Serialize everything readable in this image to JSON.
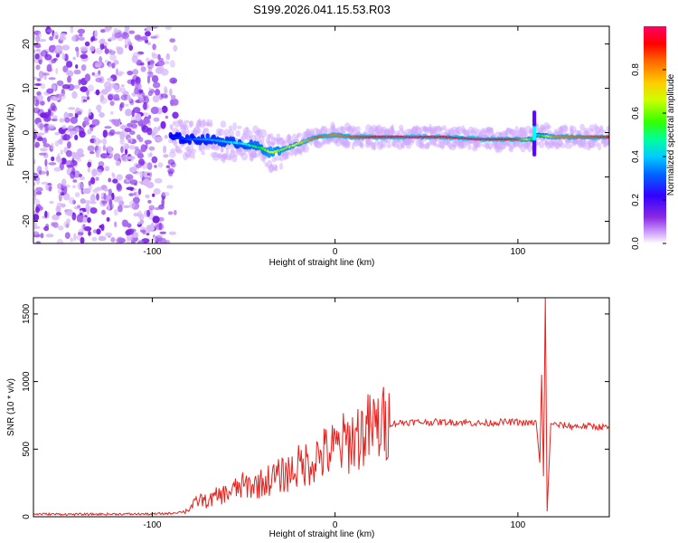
{
  "title": "S199.2026.041.15.53.R03",
  "chart_data": [
    {
      "type": "heatmap",
      "name": "spectrogram",
      "xlabel": "Height of straight line (km)",
      "ylabel": "Frequency (Hz)",
      "xlim": [
        -165,
        150
      ],
      "ylim": [
        -25,
        24
      ],
      "x_ticks": [
        -100,
        0,
        100
      ],
      "x_tick_labels": [
        "-100",
        "0",
        "100"
      ],
      "y_ticks": [
        -20,
        -10,
        0,
        10,
        20
      ],
      "y_tick_labels": [
        "-20",
        "-10",
        "0",
        "10",
        "20"
      ],
      "colorbar": {
        "label": "Normalized spectral amplitude",
        "range": [
          0.0,
          1.0
        ],
        "ticks": [
          0.0,
          0.2,
          0.4,
          0.6,
          0.8
        ],
        "tick_labels": [
          "0.0",
          "0.2",
          "0.4",
          "0.6",
          "0.8"
        ],
        "colormap": [
          "#ffffff",
          "#c8a0ff",
          "#6a00ff",
          "#0000ff",
          "#00a0ff",
          "#00ffff",
          "#00ff00",
          "#ffff00",
          "#ff8000",
          "#ff0000",
          "#ff0080"
        ]
      },
      "noise_region_x": [
        -165,
        -85
      ],
      "signal_ridge": {
        "x": [
          -90,
          -80,
          -70,
          -60,
          -50,
          -40,
          -35,
          -30,
          -20,
          -10,
          0,
          10,
          20,
          40,
          60,
          80,
          90,
          100,
          108,
          110,
          120,
          140,
          150
        ],
        "freq_hz": [
          -1.0,
          -1.5,
          -1.5,
          -2.0,
          -2.5,
          -3.5,
          -4.5,
          -4.0,
          -2.5,
          -1.0,
          -0.5,
          -1.0,
          -1.0,
          -1.0,
          -1.0,
          -1.5,
          -1.5,
          -1.5,
          -1.5,
          -0.5,
          -1.0,
          -1.0,
          -1.0
        ],
        "amplitude": [
          0.3,
          0.35,
          0.4,
          0.45,
          0.5,
          0.6,
          0.7,
          0.65,
          0.7,
          0.85,
          0.8,
          0.85,
          0.9,
          0.95,
          0.92,
          0.95,
          0.9,
          0.88,
          0.6,
          0.5,
          0.8,
          0.85,
          0.9
        ]
      },
      "spike": {
        "x": 109,
        "freq_range_hz": [
          -5,
          5
        ]
      }
    },
    {
      "type": "line",
      "name": "snr",
      "xlabel": "Height of straight line (km)",
      "ylabel": "SNR (10 * v/v)",
      "xlim": [
        -165,
        150
      ],
      "ylim": [
        0,
        1620
      ],
      "x_ticks": [
        -100,
        0,
        100
      ],
      "x_tick_labels": [
        "-100",
        "0",
        "100"
      ],
      "y_ticks": [
        0,
        500,
        1000,
        1500
      ],
      "y_tick_labels": [
        "0",
        "500",
        "1000",
        "1500"
      ],
      "series": [
        {
          "name": "SNR",
          "color": "#e8201c",
          "x": [
            -165,
            -140,
            -120,
            -100,
            -90,
            -82,
            -78,
            -74,
            -70,
            -65,
            -60,
            -55,
            -50,
            -45,
            -40,
            -35,
            -30,
            -25,
            -20,
            -15,
            -10,
            -5,
            0,
            5,
            10,
            15,
            20,
            25,
            30,
            40,
            50,
            60,
            70,
            80,
            90,
            100,
            105,
            110,
            112,
            113,
            114,
            115,
            116,
            118,
            120,
            130,
            140,
            150
          ],
          "y": [
            20,
            18,
            20,
            20,
            25,
            40,
            80,
            130,
            110,
            150,
            170,
            200,
            230,
            230,
            250,
            280,
            300,
            330,
            370,
            400,
            440,
            470,
            500,
            540,
            580,
            620,
            650,
            670,
            690,
            700,
            700,
            700,
            700,
            690,
            700,
            700,
            690,
            700,
            400,
            1050,
            300,
            1620,
            40,
            690,
            680,
            670,
            670,
            660
          ]
        }
      ]
    }
  ]
}
